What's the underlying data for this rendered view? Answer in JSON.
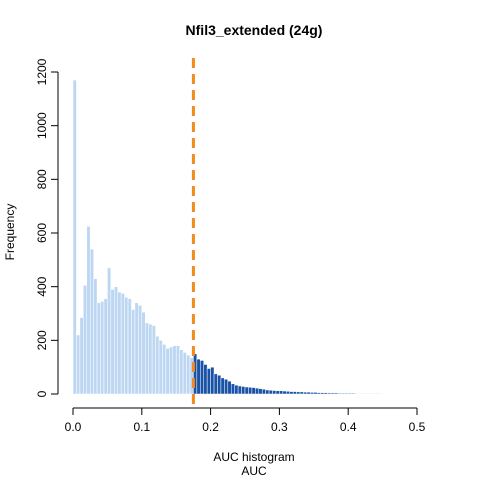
{
  "chart_data": {
    "type": "bar",
    "title": "Nfil3_extended (24g)",
    "xlabel_lines": [
      "AUC histogram",
      "AUC"
    ],
    "ylabel": "Frequency",
    "xlim": [
      0,
      0.52
    ],
    "ylim": [
      0,
      1200
    ],
    "x_ticks": [
      "0.0",
      "0.1",
      "0.2",
      "0.3",
      "0.4",
      "0.5"
    ],
    "y_ticks": [
      "0",
      "200",
      "400",
      "600",
      "800",
      "1000",
      "1200"
    ],
    "bin_width": 0.005,
    "bin_start": 0,
    "threshold": 0.175,
    "colors": {
      "below_threshold": "#bdd7f3",
      "above_threshold": "#1a53a6",
      "threshold_line": "#f28a1c",
      "bar_border": "#ffffff"
    },
    "frequencies": [
      1170,
      220,
      285,
      405,
      625,
      540,
      430,
      340,
      345,
      355,
      470,
      390,
      400,
      380,
      375,
      360,
      355,
      315,
      340,
      330,
      305,
      265,
      260,
      255,
      215,
      200,
      185,
      170,
      175,
      180,
      180,
      165,
      155,
      145,
      135,
      150,
      130,
      125,
      110,
      95,
      100,
      75,
      70,
      60,
      55,
      48,
      38,
      33,
      30,
      28,
      26,
      25,
      24,
      22,
      20,
      18,
      15,
      14,
      13,
      12,
      12,
      11,
      10,
      9,
      9,
      8,
      8,
      7,
      7,
      6,
      6,
      5,
      5,
      5,
      4,
      4,
      4,
      3,
      3,
      3,
      3,
      3,
      2,
      2,
      2,
      2,
      2,
      2,
      2,
      2,
      1,
      1,
      1,
      1,
      1,
      1,
      1,
      1,
      1,
      1,
      1,
      1,
      1,
      1
    ]
  }
}
